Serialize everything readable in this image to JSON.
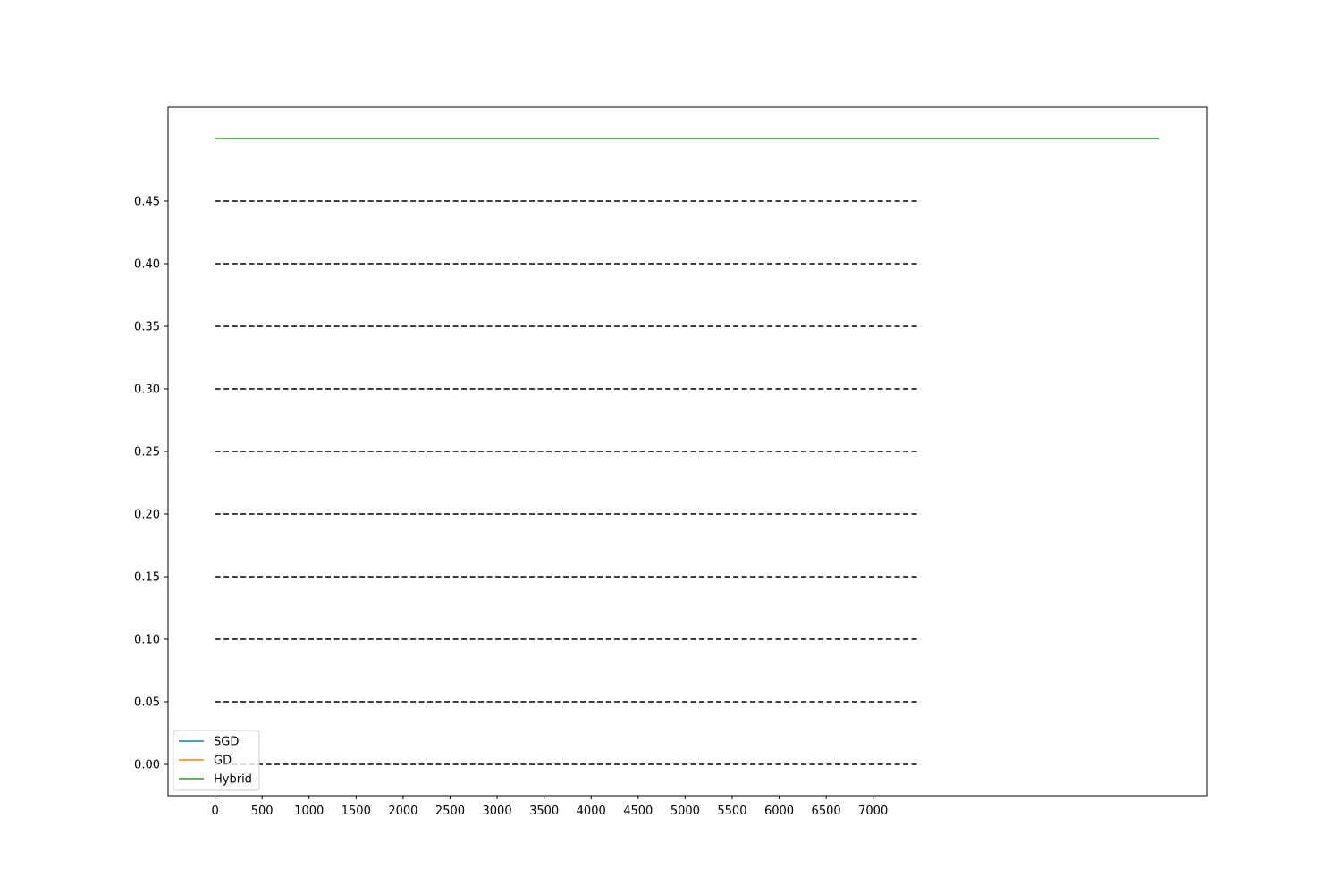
{
  "chart_data": {
    "type": "line",
    "x_ticks": [
      0,
      500,
      1000,
      1500,
      2000,
      2500,
      3000,
      3500,
      4000,
      4500,
      5000,
      5500,
      6000,
      6500,
      7000
    ],
    "y_ticks": [
      0.0,
      0.05,
      0.1,
      0.15,
      0.2,
      0.25,
      0.3,
      0.35,
      0.4,
      0.45
    ],
    "x_tick_labels": [
      "0",
      "500",
      "1000",
      "1500",
      "2000",
      "2500",
      "3000",
      "3500",
      "4000",
      "4500",
      "5000",
      "5500",
      "6000",
      "6500",
      "7000"
    ],
    "y_tick_labels": [
      "0.00",
      "0.05",
      "0.10",
      "0.15",
      "0.20",
      "0.25",
      "0.30",
      "0.35",
      "0.40",
      "0.45"
    ],
    "xlim": [
      -500,
      10550
    ],
    "ylim": [
      -0.025,
      0.525
    ],
    "reference_lines": {
      "style": "dashed",
      "color": "#000000",
      "x_start": 0,
      "x_end": 7500,
      "y_values": [
        0.0,
        0.05,
        0.1,
        0.15,
        0.2,
        0.25,
        0.3,
        0.35,
        0.4,
        0.45
      ]
    },
    "series": [
      {
        "name": "SGD",
        "color": "#1f77b4",
        "x": [],
        "y": []
      },
      {
        "name": "GD",
        "color": "#ff7f0e",
        "x": [],
        "y": []
      },
      {
        "name": "Hybrid",
        "color": "#2ca02c",
        "x": [
          0,
          10040
        ],
        "y": [
          0.5,
          0.5
        ]
      }
    ],
    "legend": {
      "position": "lower-left",
      "entries": [
        "SGD",
        "GD",
        "Hybrid"
      ]
    },
    "grid": false
  }
}
